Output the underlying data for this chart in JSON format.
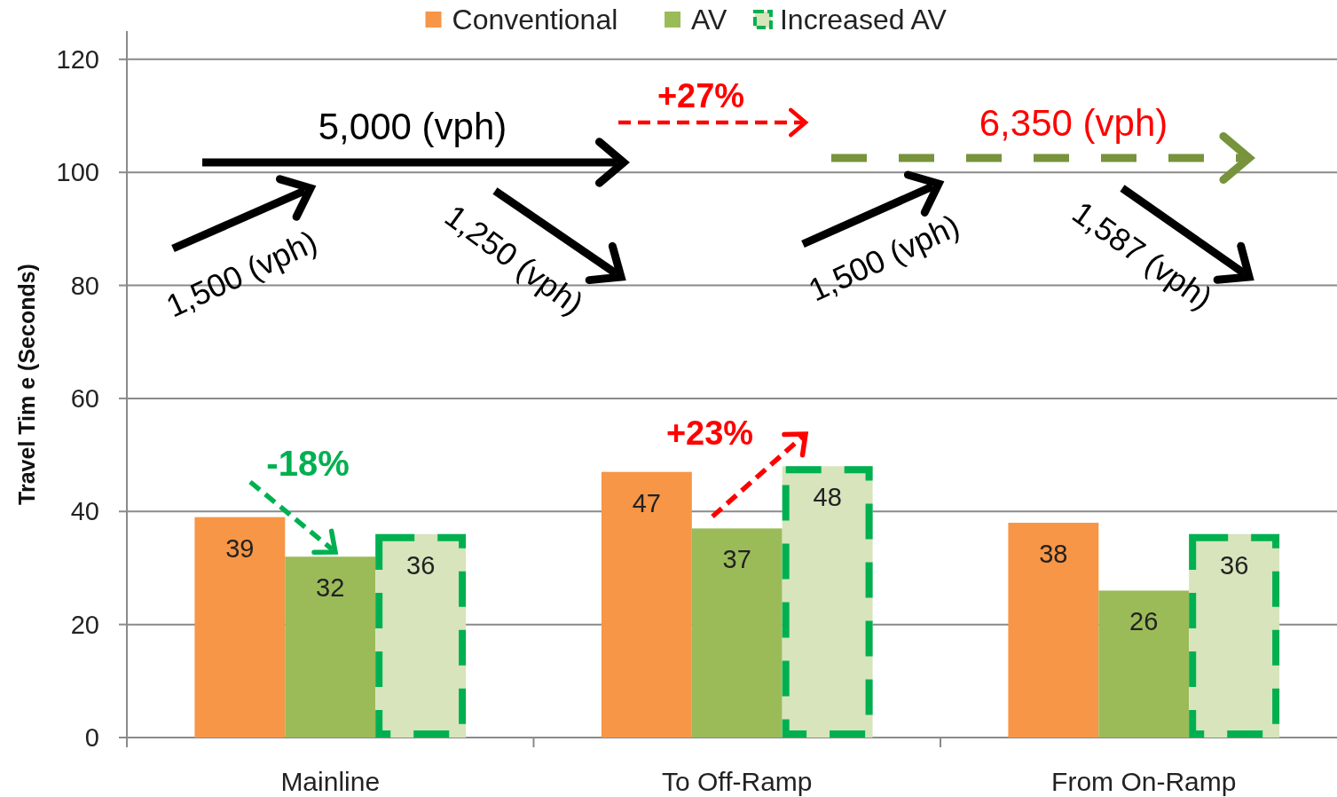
{
  "chart_data": {
    "type": "bar",
    "ylabel": "Travel Tim e (Seconds)",
    "categories": [
      "Mainline",
      "To Off-Ramp",
      "From On-Ramp"
    ],
    "series": [
      {
        "name": "Conventional",
        "color": "#f79646",
        "values": [
          39,
          47,
          38
        ]
      },
      {
        "name": "AV",
        "color": "#9bbb59",
        "values": [
          32,
          37,
          26
        ]
      },
      {
        "name": "Increased AV",
        "color": "#d7e4bc",
        "values": [
          36,
          48,
          36
        ],
        "line_style": "dashed"
      }
    ],
    "ylim": [
      0,
      125
    ],
    "yticks": [
      0,
      20,
      40,
      60,
      80,
      100,
      120
    ],
    "grid": "y",
    "legend": "top",
    "data_labels": true,
    "annotations": [
      "5,000 (vph)",
      "+27%",
      "6,350 (vph)",
      "1,500 (vph)",
      "1,250 (vph)",
      "1,500 (vph)",
      "1,587 (vph)",
      "+23%",
      "-18%"
    ]
  }
}
